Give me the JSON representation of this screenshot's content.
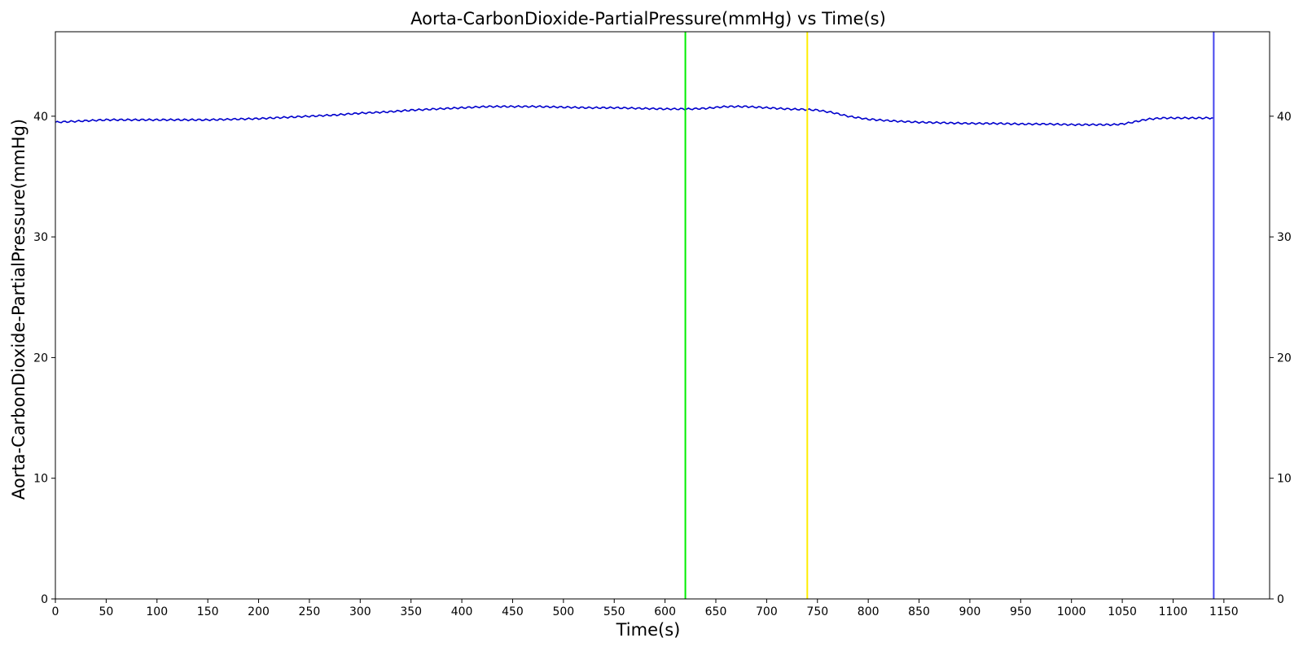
{
  "chart_data": {
    "type": "line",
    "title": "Aorta-CarbonDioxide-PartialPressure(mmHg) vs Time(s)",
    "xlabel": "Time(s)",
    "ylabel": "Aorta-CarbonDioxide-PartialPressure(mmHg)",
    "xlim": [
      0,
      1195
    ],
    "ylim": [
      0,
      47
    ],
    "x_ticks": [
      0,
      50,
      100,
      150,
      200,
      250,
      300,
      350,
      400,
      450,
      500,
      550,
      600,
      650,
      700,
      750,
      800,
      850,
      900,
      950,
      1000,
      1050,
      1100,
      1150
    ],
    "y_ticks": [
      0,
      10,
      20,
      30,
      40
    ],
    "y_ticks_right": [
      0,
      10,
      20,
      30,
      40
    ],
    "grid": false,
    "series": [
      {
        "color": "#0000cc",
        "x": [
          0,
          25,
          50,
          75,
          100,
          125,
          150,
          175,
          200,
          225,
          250,
          275,
          300,
          325,
          350,
          375,
          400,
          425,
          450,
          475,
          500,
          525,
          550,
          575,
          600,
          625,
          640,
          660,
          680,
          700,
          720,
          740,
          750,
          765,
          780,
          800,
          825,
          850,
          875,
          900,
          925,
          950,
          975,
          1000,
          1025,
          1040,
          1050,
          1060,
          1075,
          1090,
          1100,
          1125,
          1140
        ],
        "y": [
          39.5,
          39.6,
          39.7,
          39.7,
          39.7,
          39.7,
          39.7,
          39.75,
          39.8,
          39.9,
          40.0,
          40.1,
          40.25,
          40.35,
          40.5,
          40.6,
          40.7,
          40.8,
          40.8,
          40.8,
          40.75,
          40.7,
          40.7,
          40.65,
          40.6,
          40.6,
          40.65,
          40.8,
          40.8,
          40.7,
          40.6,
          40.55,
          40.5,
          40.3,
          40.0,
          39.75,
          39.6,
          39.5,
          39.45,
          39.4,
          39.4,
          39.35,
          39.35,
          39.3,
          39.3,
          39.3,
          39.35,
          39.5,
          39.75,
          39.85,
          39.85,
          39.85,
          39.85
        ]
      }
    ],
    "vertical_lines": [
      {
        "x": 620,
        "color": "#00ee00"
      },
      {
        "x": 740,
        "color": "#ffee00"
      },
      {
        "x": 1140,
        "color": "#4444ee"
      }
    ]
  }
}
